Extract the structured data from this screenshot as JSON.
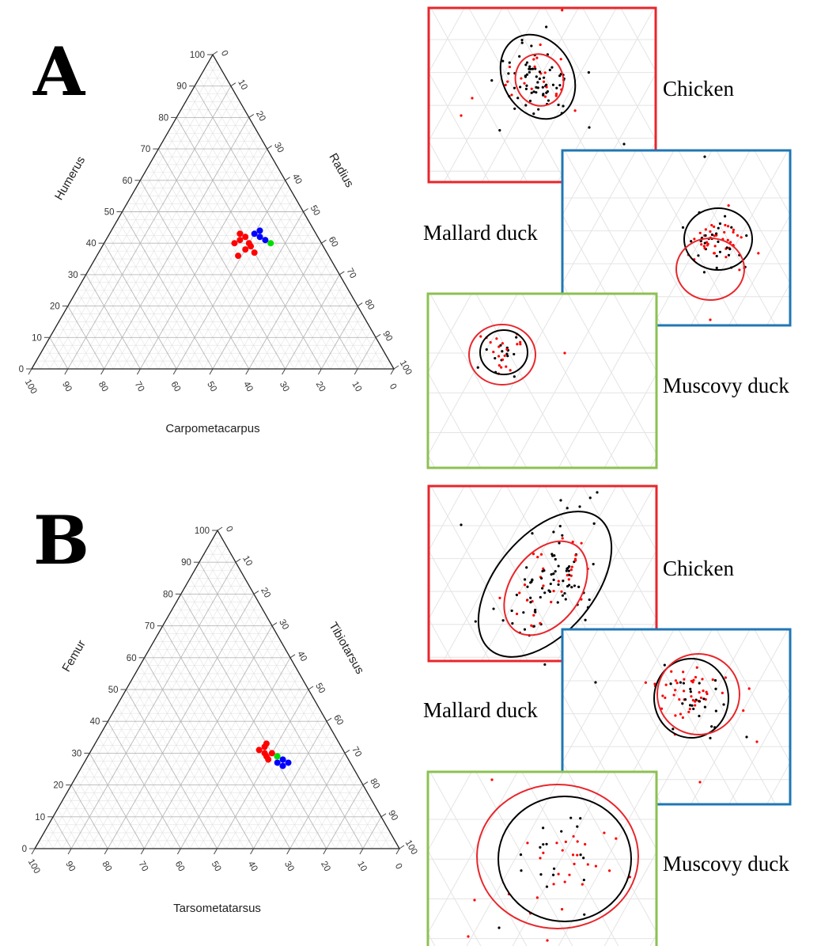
{
  "figure": {
    "panels": [
      "A",
      "B"
    ]
  },
  "legend_labels": {
    "chicken": "Chicken",
    "mallard": "Mallard duck",
    "muscovy": "Muscovy duck"
  },
  "colors": {
    "chicken": "#e8262b",
    "mallard": "#1f77b4",
    "muscovy": "#8cc152",
    "chicken_label": "#e8262b",
    "mallard_label": "#4f9dc4",
    "muscovy_label": "#8cc152",
    "dot_red": "#ff0000",
    "dot_blue": "#0000ff",
    "dot_green": "#00dd00",
    "outer_ellipse": "#000000",
    "inner_ellipse": "#e8262b"
  },
  "chart_data": [
    {
      "type": "scatter",
      "subtype": "ternary",
      "panel": "A",
      "axes": {
        "left": "Humerus",
        "right": "Radius",
        "bottom": "Carpometacarpus"
      },
      "ticks": [
        "0",
        "10",
        "20",
        "30",
        "40",
        "50",
        "60",
        "70",
        "80",
        "90",
        "100"
      ],
      "series": [
        {
          "color": "red",
          "points": [
            [
              39,
              41,
              20
            ],
            [
              42,
              38,
              20
            ],
            [
              41,
              37,
              22
            ],
            [
              40,
              40,
              20
            ],
            [
              43,
              36,
              21
            ],
            [
              37,
              43,
              20
            ],
            [
              38,
              40,
              22
            ],
            [
              40,
              36,
              24
            ],
            [
              36,
              39,
              25
            ]
          ]
        },
        {
          "color": "blue",
          "points": [
            [
              43,
              40,
              17
            ],
            [
              42,
              42,
              16
            ],
            [
              41,
              44,
              15
            ],
            [
              44,
              41,
              15
            ]
          ]
        },
        {
          "color": "green",
          "points": [
            [
              40,
              46,
              14
            ]
          ]
        }
      ]
    },
    {
      "type": "scatter",
      "subtype": "ternary",
      "panel": "B",
      "axes": {
        "left": "Femur",
        "right": "Tibiotarsus",
        "bottom": "Tarsometatarsus"
      },
      "ticks": [
        "0",
        "10",
        "20",
        "30",
        "40",
        "50",
        "60",
        "70",
        "80",
        "90",
        "100"
      ],
      "series": [
        {
          "color": "red",
          "points": [
            [
              30,
              48,
              22
            ],
            [
              32,
              47,
              21
            ],
            [
              29,
              49,
              22
            ],
            [
              31,
              46,
              23
            ],
            [
              33,
              47,
              20
            ],
            [
              30,
              50,
              20
            ],
            [
              28,
              50,
              22
            ]
          ]
        },
        {
          "color": "blue",
          "points": [
            [
              28,
              54,
              18
            ],
            [
              27,
              56,
              17
            ],
            [
              26,
              55,
              19
            ],
            [
              27,
              53,
              20
            ]
          ]
        },
        {
          "color": "green",
          "points": [
            [
              29,
              52,
              19
            ]
          ]
        }
      ]
    }
  ]
}
